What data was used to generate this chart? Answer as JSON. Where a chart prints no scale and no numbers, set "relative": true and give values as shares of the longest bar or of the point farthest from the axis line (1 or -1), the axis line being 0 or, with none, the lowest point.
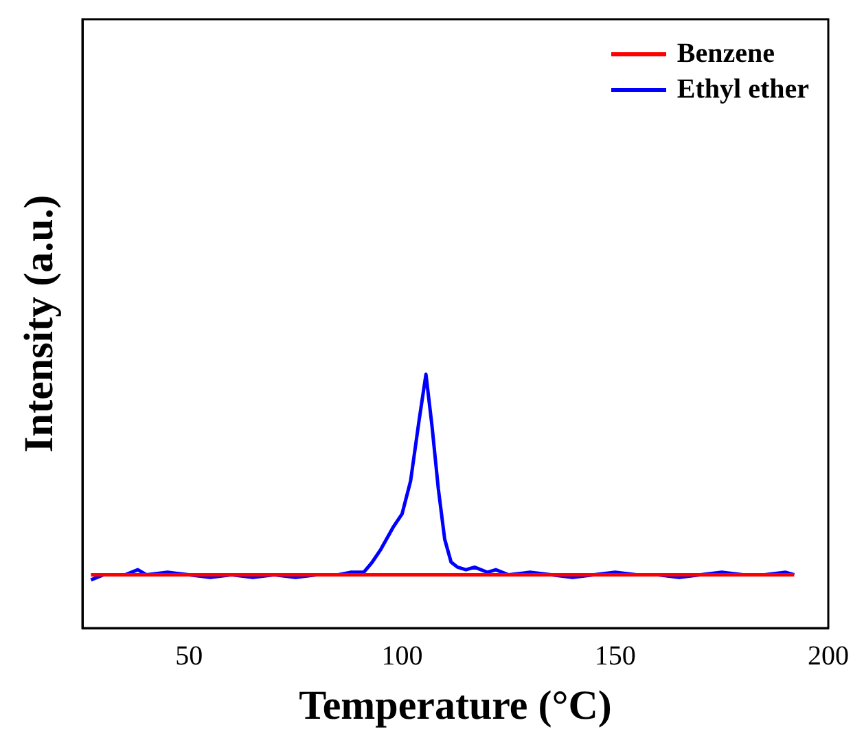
{
  "chart_data": {
    "type": "line",
    "xlabel": "Temperature (°C)",
    "ylabel": "Intensity (a.u.)",
    "xlim": [
      25,
      200
    ],
    "xticks": [
      50,
      100,
      150,
      200
    ],
    "relative": true,
    "legend": "top right",
    "grid": false,
    "marker": "none",
    "line_style": "solid",
    "tick_labels": "x",
    "series": [
      {
        "name": "Benzene",
        "color": "#ff0000",
        "x": [
          27,
          50,
          100,
          150,
          192
        ],
        "values": [
          0.21,
          0.21,
          0.21,
          0.21,
          0.21
        ]
      },
      {
        "name": "Ethyl ether",
        "color": "#0000ff",
        "x": [
          27,
          30,
          35,
          38,
          40,
          45,
          50,
          55,
          60,
          65,
          70,
          75,
          80,
          85,
          88,
          91,
          93,
          95,
          98,
          100,
          102,
          104,
          105.6,
          107,
          108.5,
          110,
          111.5,
          113,
          115,
          117,
          120,
          122,
          125,
          130,
          135,
          140,
          145,
          150,
          155,
          160,
          165,
          170,
          175,
          180,
          185,
          190,
          192
        ],
        "values": [
          0.19,
          0.21,
          0.21,
          0.23,
          0.21,
          0.22,
          0.21,
          0.2,
          0.21,
          0.2,
          0.21,
          0.2,
          0.21,
          0.21,
          0.22,
          0.22,
          0.26,
          0.31,
          0.4,
          0.45,
          0.58,
          0.82,
          1.0,
          0.8,
          0.55,
          0.35,
          0.26,
          0.24,
          0.23,
          0.24,
          0.22,
          0.23,
          0.21,
          0.22,
          0.21,
          0.2,
          0.21,
          0.22,
          0.21,
          0.21,
          0.2,
          0.21,
          0.22,
          0.21,
          0.21,
          0.22,
          0.21
        ]
      }
    ]
  }
}
